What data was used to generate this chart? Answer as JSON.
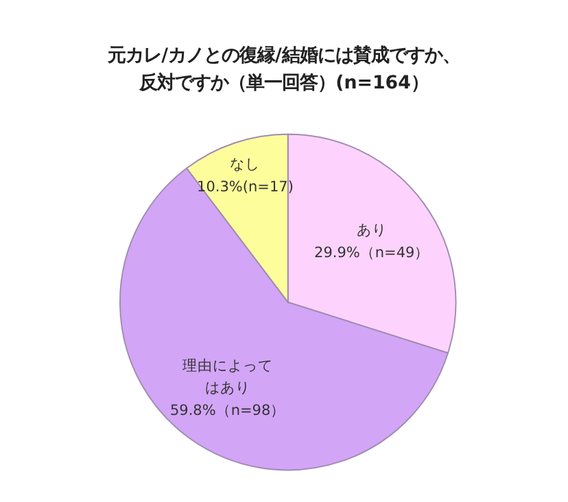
{
  "chart_data": {
    "type": "pie",
    "title": "元カレ/カノとの復縁/結婚には賛成ですか、反対ですか（単一回答）(n=164）",
    "categories": [
      "あり",
      "理由によってはあり",
      "なし"
    ],
    "values": [
      29.9,
      59.8,
      10.3
    ],
    "value_labels": [
      "29.9%（n=49）",
      "59.8%（n=98）",
      "10.3%(n=17)"
    ],
    "colors": [
      "#fdd3fd",
      "#d2a5f7",
      "#fdfd9c"
    ],
    "legend": false
  }
}
